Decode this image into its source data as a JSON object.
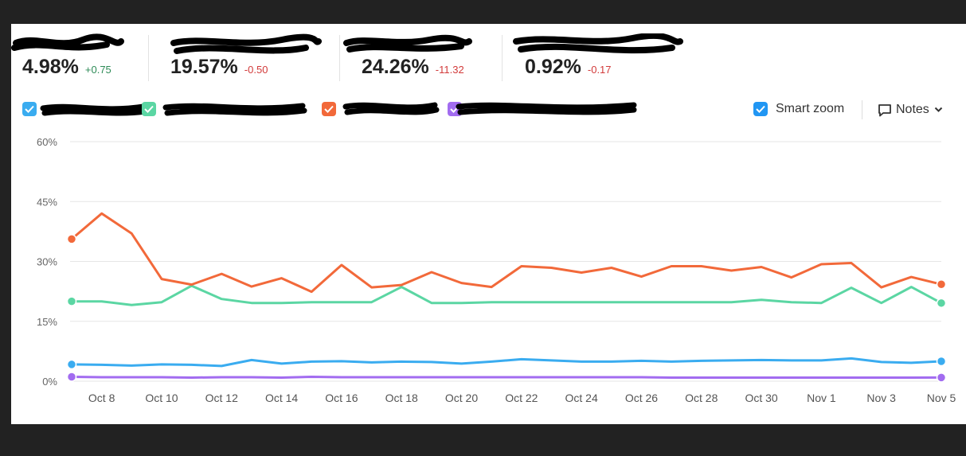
{
  "metrics": [
    {
      "value": "4.98%",
      "delta": "+0.75",
      "delta_color": "#2e8b57"
    },
    {
      "value": "19.57%",
      "delta": "-0.50",
      "delta_color": "#d23b3b"
    },
    {
      "value": "24.26%",
      "delta": "-11.32",
      "delta_color": "#d23b3b"
    },
    {
      "value": "0.92%",
      "delta": "-0.17",
      "delta_color": "#d23b3b"
    }
  ],
  "legend": [
    {
      "color": "#3aacf0",
      "checked": true
    },
    {
      "color": "#5bd6a3",
      "checked": true
    },
    {
      "color": "#f2693a",
      "checked": true
    },
    {
      "color": "#a26cf0",
      "checked": true
    }
  ],
  "controls": {
    "smart_zoom_label": "Smart zoom",
    "smart_zoom_checked": true,
    "smart_zoom_color": "#2196f3",
    "notes_label": "Notes"
  },
  "chart_data": {
    "type": "line",
    "y_ticks": [
      "60%",
      "45%",
      "30%",
      "15%",
      "0%"
    ],
    "ylim": [
      0,
      60
    ],
    "x_tick_labels": [
      "Oct 8",
      "Oct 10",
      "Oct 12",
      "Oct 14",
      "Oct 16",
      "Oct 18",
      "Oct 20",
      "Oct 22",
      "Oct 24",
      "Oct 26",
      "Oct 28",
      "Oct 30",
      "Nov 1",
      "Nov 3",
      "Nov 5"
    ],
    "x": [
      "Oct 7",
      "Oct 8",
      "Oct 9",
      "Oct 10",
      "Oct 11",
      "Oct 12",
      "Oct 13",
      "Oct 14",
      "Oct 15",
      "Oct 16",
      "Oct 17",
      "Oct 18",
      "Oct 19",
      "Oct 20",
      "Oct 21",
      "Oct 22",
      "Oct 23",
      "Oct 24",
      "Oct 25",
      "Oct 26",
      "Oct 27",
      "Oct 28",
      "Oct 29",
      "Oct 30",
      "Oct 31",
      "Nov 1",
      "Nov 2",
      "Nov 3",
      "Nov 4",
      "Nov 5"
    ],
    "grid": true,
    "series": [
      {
        "color": "#3aacf0",
        "values": [
          4.2,
          4.1,
          3.9,
          4.2,
          4.1,
          3.8,
          5.3,
          4.4,
          4.9,
          5.0,
          4.7,
          4.9,
          4.8,
          4.4,
          4.9,
          5.5,
          5.2,
          4.9,
          4.9,
          5.1,
          4.9,
          5.1,
          5.2,
          5.3,
          5.2,
          5.2,
          5.7,
          4.8,
          4.6,
          4.98
        ]
      },
      {
        "color": "#5bd6a3",
        "values": [
          20.0,
          20.0,
          19.1,
          19.8,
          23.9,
          20.6,
          19.6,
          19.6,
          19.8,
          19.8,
          19.8,
          23.6,
          19.6,
          19.6,
          19.8,
          19.8,
          19.8,
          19.8,
          19.8,
          19.8,
          19.8,
          19.8,
          19.8,
          20.4,
          19.8,
          19.6,
          23.4,
          19.6,
          23.6,
          19.57
        ]
      },
      {
        "color": "#f2693a",
        "values": [
          35.6,
          42.0,
          37.0,
          25.6,
          24.2,
          26.9,
          23.7,
          25.8,
          22.4,
          29.1,
          23.5,
          24.1,
          27.3,
          24.6,
          23.6,
          28.8,
          28.4,
          27.2,
          28.4,
          26.2,
          28.8,
          28.8,
          27.7,
          28.6,
          26.0,
          29.3,
          29.6,
          23.5,
          26.1,
          24.26
        ]
      },
      {
        "color": "#a26cf0",
        "values": [
          1.1,
          1.0,
          1.0,
          1.0,
          0.9,
          1.0,
          1.0,
          0.9,
          1.1,
          1.0,
          1.0,
          1.0,
          1.0,
          1.0,
          1.0,
          1.0,
          1.0,
          1.0,
          1.0,
          1.0,
          0.9,
          0.9,
          0.9,
          0.9,
          0.9,
          0.9,
          0.9,
          0.9,
          0.9,
          0.92
        ]
      }
    ]
  }
}
